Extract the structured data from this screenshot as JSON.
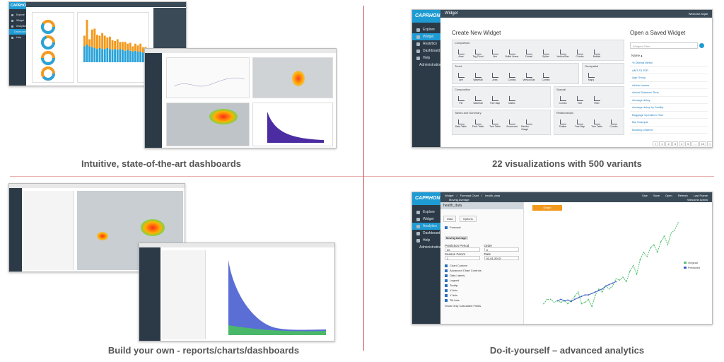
{
  "captions": {
    "q1": "Intuitive, state-of-the-art dashboards",
    "q2": "22 visualizations with 500 variants",
    "q3": "Build your own - reports/charts/dashboards",
    "q4": "Do-it-yourself – advanced analytics"
  },
  "brand": {
    "logo": "CAPRHON"
  },
  "sidebar": {
    "items": [
      "Explore",
      "Widget",
      "Analytics",
      "Dashboard",
      "Help",
      "Administration"
    ]
  },
  "widget": {
    "header_title": "Widget",
    "user_label": "Welcome Anjali",
    "create_title": "Create New Widget",
    "open_title": "Open a Saved Widget",
    "search_placeholder": "Widgets Filter...",
    "name_header": "Name ▴",
    "sections": [
      {
        "title": "Comparison",
        "items": [
          "Area",
          "Tag Cloud",
          "Line",
          "Bullet Linear",
          "Funnel",
          "Spider",
          "Vertical Bar",
          "Combo",
          "Bubble"
        ]
      },
      {
        "title": "Trend",
        "items": [
          "Line",
          "Waterfall",
          "Area",
          "Combo",
          "Vertical Bar",
          "Combo"
        ]
      },
      {
        "title": "Geospatial",
        "items": [
          "Maps"
        ]
      },
      {
        "title": "Composition",
        "items": [
          "Pie",
          "Waterfall",
          "Tree Map",
          "Matrix"
        ]
      },
      {
        "title": "Special",
        "items": [
          "Combo",
          "Text",
          "Filter"
        ]
      },
      {
        "title": "Tables and Summary",
        "items": [
          "Data Table",
          "Pivot Table",
          "Tree Table",
          "Scorecard",
          "Metrics Gauge"
        ]
      },
      {
        "title": "Relationships",
        "items": [
          "Scatter",
          "Tree Map",
          "Tree Table",
          "Combo"
        ]
      }
    ],
    "saved": [
      "% Dilema Metric",
      "AMT FILTER",
      "Age Group",
      "Airline names",
      "Arrival Distance Time",
      "Average delay",
      "Average delay by Facility",
      "Baggage Operation Time",
      "Bar Example",
      "Booking channel"
    ],
    "pagination": [
      "«",
      "1",
      "2",
      "3",
      "4",
      "5",
      "...",
      "10",
      "»"
    ]
  },
  "analytics": {
    "breadcrumb": [
      "Widget",
      "Forecast Chart",
      "health_data"
    ],
    "sub_label": "Moving Average",
    "menu": [
      "Size",
      "Save",
      "Open",
      "Refresh",
      "Last Frame"
    ],
    "user_label": "Welcome Admin",
    "dataset": "health_data",
    "tabs": [
      "Data",
      "Options"
    ],
    "forecast_label": "Forecast",
    "model": "Moving Average",
    "fields": [
      {
        "label": "Prediction Period",
        "value": "20"
      },
      {
        "label": "Order",
        "value": "3"
      },
      {
        "label": "Season Factor",
        "value": "1"
      },
      {
        "label": "Date",
        "value": "01-01-2013"
      }
    ],
    "options": [
      "Chart Content",
      "Advanced Chart Controls",
      "Data Labels",
      "Legend",
      "Tooltip",
      "X Axis",
      "Y Axis",
      "Tilt Axis"
    ],
    "footer_option": "Show Only Calculated Fields",
    "tab_active": "Graph",
    "legend": [
      "Original",
      "Predicted"
    ],
    "colors": {
      "original": "#56c271",
      "predicted": "#3f5fc4",
      "accent": "#f39a1e"
    }
  },
  "chart_data": [
    {
      "type": "bar",
      "categories": [
        "1",
        "2",
        "3",
        "4",
        "5",
        "6",
        "7",
        "8",
        "9",
        "10",
        "11",
        "12",
        "13",
        "14",
        "15",
        "16",
        "17",
        "18",
        "19",
        "20",
        "21",
        "22",
        "23",
        "24",
        "25"
      ],
      "series": [
        {
          "values": [
            12,
            28,
            8,
            20,
            22,
            16,
            14,
            18,
            15,
            12,
            14,
            11,
            9,
            12,
            8,
            9,
            10,
            7,
            9,
            6,
            8,
            7,
            9,
            6,
            5
          ]
        },
        {
          "values": [
            18,
            20,
            18,
            17,
            16,
            15,
            16,
            15,
            15,
            16,
            15,
            14,
            15,
            14,
            15,
            14,
            13,
            14,
            13,
            12,
            13,
            12,
            12,
            11,
            12
          ]
        }
      ]
    },
    {
      "type": "line",
      "series": [
        {
          "name": "Original",
          "values": [
            300,
            330,
            330,
            310,
            320,
            310,
            320,
            300,
            320,
            350,
            380,
            300,
            310,
            330,
            280,
            360,
            400,
            380,
            420,
            400,
            420,
            470,
            460,
            480,
            450,
            520,
            560,
            500,
            600,
            650,
            620,
            680,
            700,
            650,
            720,
            760,
            700,
            780,
            800,
            850
          ]
        },
        {
          "name": "Predicted",
          "values": [
            320,
            330,
            320,
            325,
            315,
            330,
            340,
            350,
            360,
            360,
            370,
            380,
            390,
            400,
            420,
            430,
            440,
            450
          ]
        }
      ]
    }
  ]
}
